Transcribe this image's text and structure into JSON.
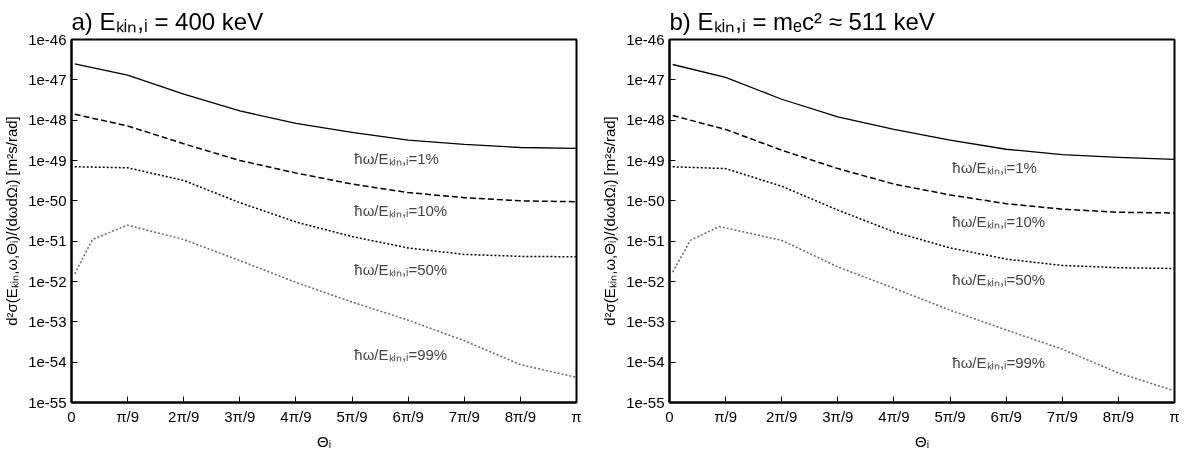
{
  "chart_data": [
    {
      "type": "line",
      "title": "a) Eₖᵢₙ,ᵢ = 400 keV",
      "xlabel": "Θᵢ",
      "ylabel": "d²σ(Eₖᵢₙ,ω,Θᵢ)/(dωdΩᵢ) [m²s/rad]",
      "log": "y",
      "grid": false,
      "xlim": [
        0,
        3.1416
      ],
      "ylim": [
        1e-55,
        1e-46
      ],
      "xticks": [
        {
          "value": 0,
          "label": "0"
        },
        {
          "value": 0.3491,
          "label": "π/9"
        },
        {
          "value": 0.6981,
          "label": "2π/9"
        },
        {
          "value": 1.0472,
          "label": "3π/9"
        },
        {
          "value": 1.3963,
          "label": "4π/9"
        },
        {
          "value": 1.7453,
          "label": "5π/9"
        },
        {
          "value": 2.0944,
          "label": "6π/9"
        },
        {
          "value": 2.4435,
          "label": "7π/9"
        },
        {
          "value": 2.7925,
          "label": "8π/9"
        },
        {
          "value": 3.1416,
          "label": "π"
        }
      ],
      "yticks": [
        1e-55,
        1e-54,
        1e-53,
        1e-52,
        1e-51,
        1e-50,
        1e-49,
        1e-48,
        1e-47,
        1e-46
      ],
      "x": [
        0.02,
        0.3491,
        0.6981,
        1.0472,
        1.3963,
        1.7453,
        2.0944,
        2.4435,
        2.7925,
        3.1416
      ],
      "series": [
        {
          "name": "ħω/Eₖᵢₙ,ᵢ=1%",
          "color": "#000000",
          "line_style": "solid",
          "values": [
            2.5e-47,
            1.3e-47,
            4.4e-48,
            1.7e-48,
            8.3e-49,
            5e-49,
            3.2e-49,
            2.5e-49,
            2.1e-49,
            2e-49
          ]
        },
        {
          "name": "ħω/Eₖᵢₙ,ᵢ=10%",
          "color": "#000000",
          "line_style": "dashed",
          "values": [
            1.4e-48,
            7.2e-49,
            2.6e-49,
            1e-49,
            4.9e-50,
            2.6e-50,
            1.6e-50,
            1.2e-50,
            1e-50,
            9.5e-51
          ]
        },
        {
          "name": "ħω/Eₖᵢₙ,ᵢ=50%",
          "color": "#000000",
          "line_style": "dotted",
          "values": [
            7e-50,
            6.6e-50,
            3.2e-50,
            9e-51,
            3e-51,
            1.3e-51,
            6.8e-52,
            4.7e-52,
            4.2e-52,
            4.1e-52
          ]
        },
        {
          "name": "ħω/Eₖᵢₙ,ᵢ=99%",
          "color": "#666666",
          "line_style": "dotted",
          "x": [
            0.02,
            0.13,
            0.3491,
            0.6981,
            1.0472,
            1.3963,
            1.7453,
            2.0944,
            2.4435,
            2.7925,
            3.1416
          ],
          "values": [
            1.55e-52,
            1.1e-51,
            2.5e-51,
            1.1e-51,
            3.3e-52,
            9.5e-53,
            3.1e-53,
            1.1e-53,
            3.4e-54,
            8.7e-55,
            4.2e-55
          ]
        }
      ]
    },
    {
      "type": "line",
      "title": "b) Eₖᵢₙ,ᵢ = mₑc² ≈ 511 keV",
      "xlabel": "Θᵢ",
      "ylabel": "d²σ(Eₖᵢₙ,ω,Θᵢ)/(dωdΩᵢ) [m²s/rad]",
      "log": "y",
      "grid": false,
      "xlim": [
        0,
        3.1416
      ],
      "ylim": [
        1e-55,
        1e-46
      ],
      "xticks": [
        {
          "value": 0,
          "label": "0"
        },
        {
          "value": 0.3491,
          "label": "π/9"
        },
        {
          "value": 0.6981,
          "label": "2π/9"
        },
        {
          "value": 1.0472,
          "label": "3π/9"
        },
        {
          "value": 1.3963,
          "label": "4π/9"
        },
        {
          "value": 1.7453,
          "label": "5π/9"
        },
        {
          "value": 2.0944,
          "label": "6π/9"
        },
        {
          "value": 2.4435,
          "label": "7π/9"
        },
        {
          "value": 2.7925,
          "label": "8π/9"
        },
        {
          "value": 3.1416,
          "label": "π"
        }
      ],
      "yticks": [
        1e-55,
        1e-54,
        1e-53,
        1e-52,
        1e-51,
        1e-50,
        1e-49,
        1e-48,
        1e-47,
        1e-46
      ],
      "x": [
        0.02,
        0.3491,
        0.6981,
        1.0472,
        1.3963,
        1.7453,
        2.0944,
        2.4435,
        2.7925,
        3.1416
      ],
      "series": [
        {
          "name": "ħω/Eₖᵢₙ,ᵢ=1%",
          "color": "#000000",
          "line_style": "solid",
          "values": [
            2.4e-47,
            1.15e-47,
            3.3e-48,
            1.2e-48,
            5.9e-49,
            3.2e-49,
            1.9e-49,
            1.4e-49,
            1.2e-49,
            1.07e-49
          ]
        },
        {
          "name": "ħω/Eₖᵢₙ,ᵢ=10%",
          "color": "#000000",
          "line_style": "dashed",
          "values": [
            1.3e-48,
            5.9e-49,
            1.8e-49,
            6.3e-50,
            2.6e-50,
            1.4e-50,
            8.5e-51,
            6.2e-51,
            5.2e-51,
            5e-51
          ]
        },
        {
          "name": "ħω/Eₖᵢₙ,ᵢ=50%",
          "color": "#000000",
          "line_style": "dotted",
          "values": [
            7e-50,
            6.3e-50,
            2.3e-50,
            5.9e-51,
            1.7e-51,
            6.8e-52,
            3.6e-52,
            2.5e-52,
            2.2e-52,
            2.1e-52
          ]
        },
        {
          "name": "ħω/Eₖᵢₙ,ᵢ=99%",
          "color": "#666666",
          "line_style": "dotted",
          "x": [
            0.02,
            0.13,
            0.31,
            0.6981,
            1.0472,
            1.3963,
            1.7453,
            2.0944,
            2.4435,
            2.7925,
            3.1416
          ],
          "values": [
            1.7e-52,
            1.05e-51,
            2.3e-51,
            1.05e-51,
            2.3e-52,
            6.8e-53,
            1.95e-53,
            6.3e-54,
            2.1e-54,
            5.4e-55,
            1.95e-55
          ]
        }
      ]
    }
  ]
}
